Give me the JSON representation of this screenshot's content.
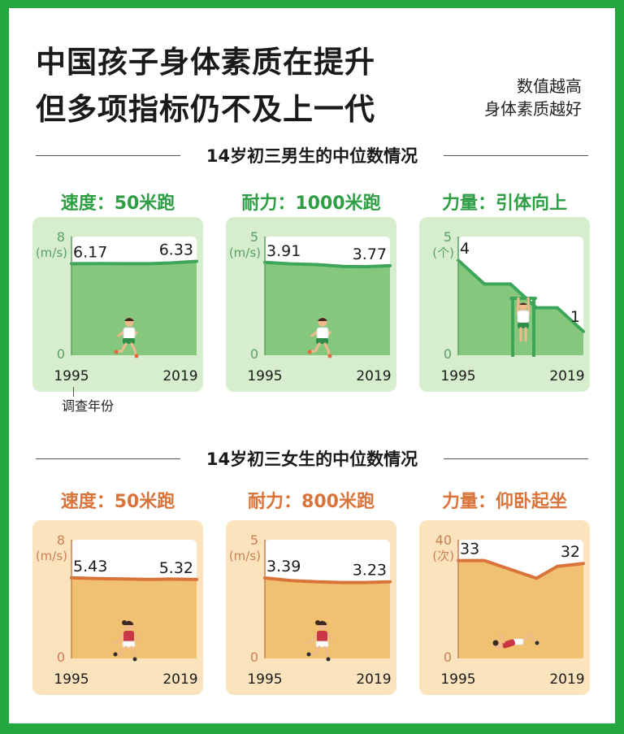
{
  "title": {
    "line1": "中国孩子身体素质在提升",
    "line2": "但多项指标仍不及上一代"
  },
  "note": {
    "line1": "数值越高",
    "line2": "身体素质越好"
  },
  "sections": {
    "boys": {
      "title": "14岁初三男生的中位数情况"
    },
    "girls": {
      "title": "14岁初三女生的中位数情况"
    }
  },
  "x_axis_note": "调查年份",
  "colors": {
    "boy_bg": "#d6eecd",
    "boy_area": "#85c87d",
    "boy_line": "#3ea65a",
    "boy_title": "#2e9e44",
    "girl_bg": "#fbe4bd",
    "girl_area": "#f0c170",
    "girl_line": "#d9733a",
    "girl_title": "#d9733a"
  },
  "chart_data": [
    {
      "type": "line",
      "group": "boys",
      "title": "速度：50米跑",
      "unit": "(m/s)",
      "ylim": [
        0,
        8
      ],
      "yticks": [
        "8",
        "0"
      ],
      "x": [
        1995,
        2000,
        2005,
        2010,
        2014,
        2019
      ],
      "values": [
        6.17,
        6.18,
        6.17,
        6.17,
        6.22,
        6.33
      ],
      "labels": [
        {
          "index": 0,
          "text": "6.17"
        },
        {
          "index": 5,
          "text": "6.33"
        }
      ],
      "xticks": [
        "1995",
        "2019"
      ],
      "icon": "runner-boy-icon"
    },
    {
      "type": "line",
      "group": "boys",
      "title": "耐力：1000米跑",
      "unit": "(m/s)",
      "ylim": [
        0,
        5
      ],
      "yticks": [
        "5",
        "0"
      ],
      "x": [
        1995,
        2000,
        2005,
        2010,
        2014,
        2019
      ],
      "values": [
        3.91,
        3.85,
        3.82,
        3.74,
        3.73,
        3.77
      ],
      "labels": [
        {
          "index": 0,
          "text": "3.91"
        },
        {
          "index": 5,
          "text": "3.77"
        }
      ],
      "xticks": [
        "1995",
        "2019"
      ],
      "icon": "runner-boy-icon"
    },
    {
      "type": "line",
      "group": "boys",
      "title": "力量：引体向上",
      "unit": "(个)",
      "ylim": [
        0,
        5
      ],
      "yticks": [
        "5",
        "0"
      ],
      "x": [
        1995,
        2000,
        2005,
        2010,
        2014,
        2019
      ],
      "values": [
        4,
        3,
        3,
        2,
        2,
        1
      ],
      "labels": [
        {
          "index": 0,
          "text": "4"
        },
        {
          "index": 5,
          "text": "1"
        }
      ],
      "xticks": [
        "1995",
        "2019"
      ],
      "icon": "pullup-boy-icon"
    },
    {
      "type": "line",
      "group": "girls",
      "title": "速度：50米跑",
      "unit": "(m/s)",
      "ylim": [
        0,
        8
      ],
      "yticks": [
        "8",
        "0"
      ],
      "x": [
        1995,
        2000,
        2005,
        2010,
        2014,
        2019
      ],
      "values": [
        5.43,
        5.38,
        5.36,
        5.32,
        5.35,
        5.32
      ],
      "labels": [
        {
          "index": 0,
          "text": "5.43"
        },
        {
          "index": 5,
          "text": "5.32"
        }
      ],
      "xticks": [
        "1995",
        "2019"
      ],
      "icon": "runner-girl-icon"
    },
    {
      "type": "line",
      "group": "girls",
      "title": "耐力：800米跑",
      "unit": "(m/s)",
      "ylim": [
        0,
        5
      ],
      "yticks": [
        "5",
        "0"
      ],
      "x": [
        1995,
        2000,
        2005,
        2010,
        2014,
        2019
      ],
      "values": [
        3.39,
        3.28,
        3.23,
        3.2,
        3.2,
        3.23
      ],
      "labels": [
        {
          "index": 0,
          "text": "3.39"
        },
        {
          "index": 5,
          "text": "3.23"
        }
      ],
      "xticks": [
        "1995",
        "2019"
      ],
      "icon": "runner-girl-icon"
    },
    {
      "type": "line",
      "group": "girls",
      "title": "力量：仰卧起坐",
      "unit": "(次)",
      "ylim": [
        0,
        40
      ],
      "yticks": [
        "40",
        "0"
      ],
      "x": [
        1995,
        2000,
        2005,
        2010,
        2014,
        2019
      ],
      "values": [
        33,
        33,
        30,
        27,
        31,
        32
      ],
      "labels": [
        {
          "index": 0,
          "text": "33"
        },
        {
          "index": 5,
          "text": "32"
        }
      ],
      "xticks": [
        "1995",
        "2019"
      ],
      "icon": "situp-girl-icon"
    }
  ]
}
